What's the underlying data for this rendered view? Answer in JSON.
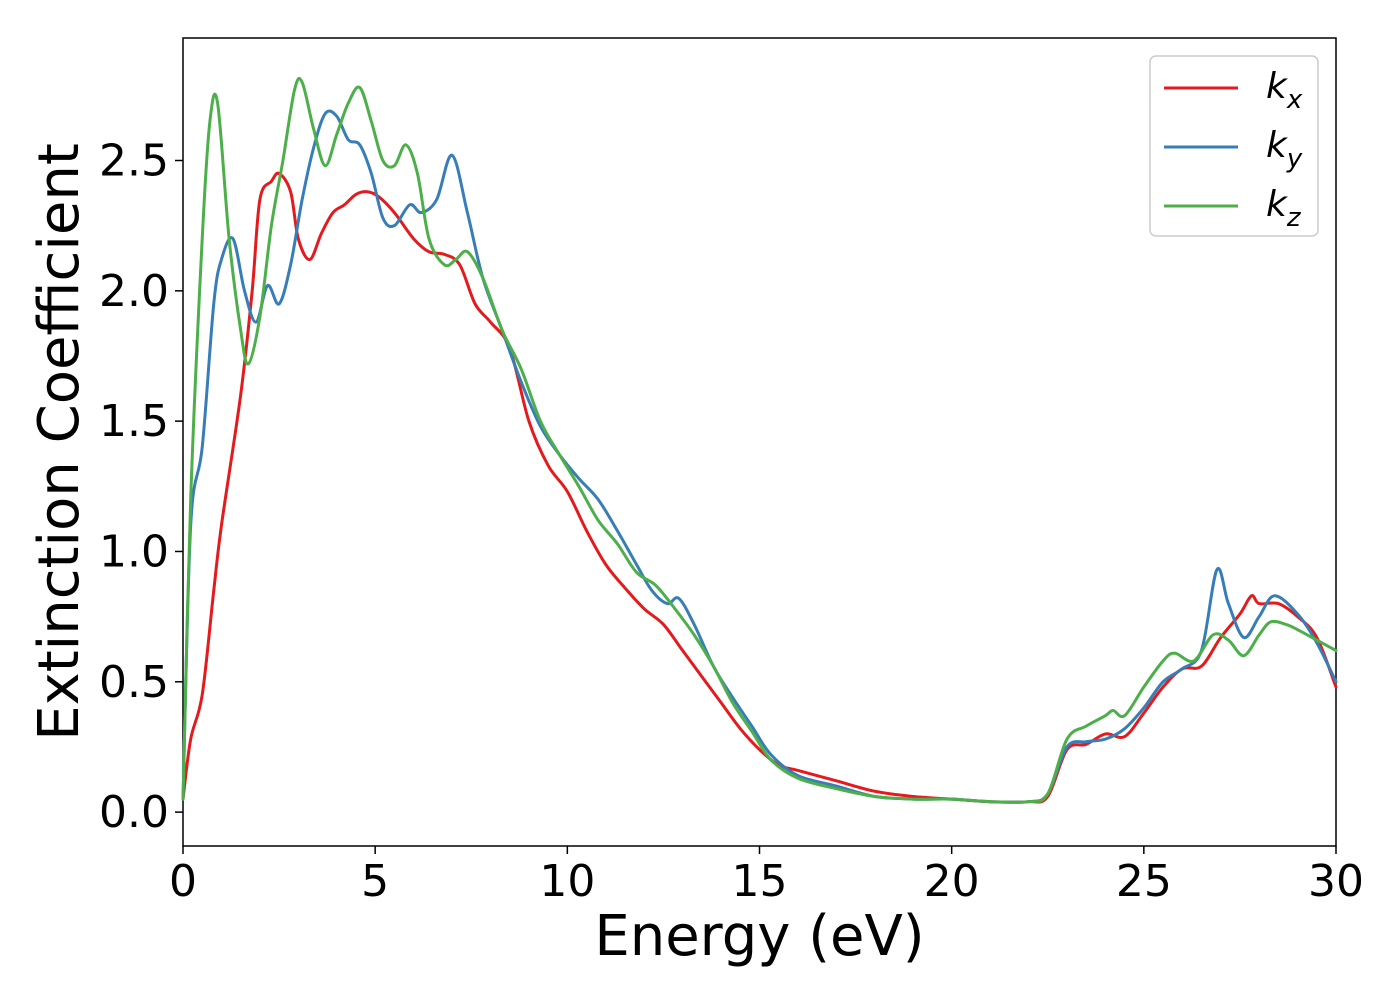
{
  "chart_data": {
    "type": "line",
    "xlabel": "Energy (eV)",
    "ylabel": "Extinction Coefficient",
    "xlim": [
      0,
      30
    ],
    "ylim": [
      -0.13,
      2.97
    ],
    "xticks": [
      "0",
      "5",
      "10",
      "15",
      "20",
      "25",
      "30"
    ],
    "yticks": [
      "0.0",
      "0.5",
      "1.0",
      "1.5",
      "2.0",
      "2.5"
    ],
    "legend_position": "top-right",
    "grid": false,
    "series": [
      {
        "name": "k",
        "subscript": "x",
        "color": "#e41a1c",
        "x": [
          0,
          0.2,
          0.5,
          0.8,
          1.0,
          1.5,
          1.8,
          2.0,
          2.3,
          2.5,
          2.8,
          3.0,
          3.3,
          3.6,
          3.9,
          4.2,
          4.5,
          4.8,
          5.1,
          5.5,
          6.0,
          6.4,
          6.8,
          7.2,
          7.6,
          8.0,
          8.5,
          9.0,
          9.5,
          10.0,
          10.5,
          11.0,
          11.5,
          12.0,
          12.5,
          13.0,
          13.5,
          14.0,
          14.5,
          15.0,
          15.5,
          16.0,
          17.0,
          18.0,
          19.0,
          20.0,
          21.0,
          22.0,
          22.5,
          23.0,
          23.5,
          24.0,
          24.5,
          25.0,
          25.5,
          26.0,
          26.5,
          27.0,
          27.5,
          27.8,
          28.0,
          28.5,
          29.0,
          29.5,
          30.0
        ],
        "y": [
          0.05,
          0.28,
          0.45,
          0.85,
          1.1,
          1.6,
          2.0,
          2.35,
          2.42,
          2.45,
          2.38,
          2.2,
          2.12,
          2.22,
          2.3,
          2.33,
          2.37,
          2.38,
          2.36,
          2.3,
          2.2,
          2.15,
          2.14,
          2.1,
          1.95,
          1.88,
          1.78,
          1.5,
          1.33,
          1.23,
          1.08,
          0.95,
          0.86,
          0.78,
          0.72,
          0.62,
          0.52,
          0.42,
          0.32,
          0.24,
          0.18,
          0.16,
          0.12,
          0.08,
          0.06,
          0.05,
          0.04,
          0.04,
          0.06,
          0.24,
          0.26,
          0.3,
          0.29,
          0.38,
          0.48,
          0.55,
          0.56,
          0.67,
          0.76,
          0.83,
          0.8,
          0.8,
          0.75,
          0.67,
          0.48
        ]
      },
      {
        "name": "k",
        "subscript": "y",
        "color": "#377eb8",
        "x": [
          0,
          0.2,
          0.5,
          0.8,
          1.0,
          1.3,
          1.6,
          1.9,
          2.2,
          2.5,
          2.8,
          3.1,
          3.4,
          3.7,
          4.0,
          4.3,
          4.6,
          4.9,
          5.2,
          5.5,
          5.9,
          6.2,
          6.6,
          7.0,
          7.4,
          7.8,
          8.3,
          8.8,
          9.3,
          9.8,
          10.3,
          10.8,
          11.3,
          11.8,
          12.2,
          12.6,
          12.9,
          13.3,
          13.8,
          14.3,
          14.8,
          15.3,
          16.0,
          17.0,
          18.0,
          19.0,
          20.0,
          21.0,
          22.0,
          22.5,
          23.0,
          23.5,
          24.0,
          24.5,
          25.0,
          25.5,
          26.0,
          26.5,
          26.9,
          27.2,
          27.6,
          28.0,
          28.4,
          29.0,
          29.5,
          30.0
        ],
        "y": [
          0.05,
          1.1,
          1.4,
          1.95,
          2.12,
          2.2,
          2.0,
          1.88,
          2.02,
          1.95,
          2.1,
          2.35,
          2.55,
          2.68,
          2.67,
          2.58,
          2.56,
          2.45,
          2.28,
          2.25,
          2.33,
          2.3,
          2.35,
          2.52,
          2.3,
          2.05,
          1.85,
          1.65,
          1.48,
          1.37,
          1.28,
          1.2,
          1.08,
          0.95,
          0.85,
          0.8,
          0.82,
          0.72,
          0.56,
          0.44,
          0.33,
          0.22,
          0.14,
          0.1,
          0.06,
          0.05,
          0.05,
          0.04,
          0.04,
          0.07,
          0.25,
          0.27,
          0.28,
          0.32,
          0.4,
          0.5,
          0.55,
          0.62,
          0.93,
          0.8,
          0.67,
          0.75,
          0.83,
          0.76,
          0.65,
          0.5
        ]
      },
      {
        "name": "k",
        "subscript": "z",
        "color": "#4daf4a",
        "x": [
          0,
          0.2,
          0.5,
          0.7,
          0.9,
          1.2,
          1.5,
          1.7,
          2.0,
          2.3,
          2.6,
          2.9,
          3.1,
          3.4,
          3.7,
          4.0,
          4.3,
          4.6,
          4.9,
          5.2,
          5.5,
          5.8,
          6.1,
          6.4,
          6.8,
          7.1,
          7.4,
          7.8,
          8.3,
          8.8,
          9.3,
          9.8,
          10.3,
          10.8,
          11.3,
          11.8,
          12.3,
          12.8,
          13.3,
          13.8,
          14.3,
          14.8,
          15.3,
          16.0,
          17.0,
          18.0,
          19.0,
          20.0,
          21.0,
          22.0,
          22.5,
          23.0,
          23.5,
          24.0,
          24.2,
          24.5,
          25.0,
          25.5,
          25.8,
          26.3,
          26.8,
          27.2,
          27.6,
          28.0,
          28.3,
          28.7,
          29.0,
          29.5,
          30.0
        ],
        "y": [
          0.05,
          1.2,
          2.2,
          2.65,
          2.72,
          2.2,
          1.85,
          1.72,
          1.9,
          2.25,
          2.5,
          2.77,
          2.8,
          2.62,
          2.48,
          2.6,
          2.72,
          2.78,
          2.65,
          2.5,
          2.48,
          2.56,
          2.45,
          2.2,
          2.1,
          2.12,
          2.15,
          2.05,
          1.85,
          1.7,
          1.5,
          1.37,
          1.25,
          1.12,
          1.03,
          0.92,
          0.87,
          0.78,
          0.68,
          0.56,
          0.42,
          0.31,
          0.2,
          0.13,
          0.09,
          0.06,
          0.05,
          0.05,
          0.04,
          0.04,
          0.07,
          0.28,
          0.33,
          0.37,
          0.39,
          0.37,
          0.48,
          0.58,
          0.61,
          0.58,
          0.68,
          0.66,
          0.6,
          0.68,
          0.73,
          0.72,
          0.7,
          0.66,
          0.62
        ]
      }
    ]
  }
}
